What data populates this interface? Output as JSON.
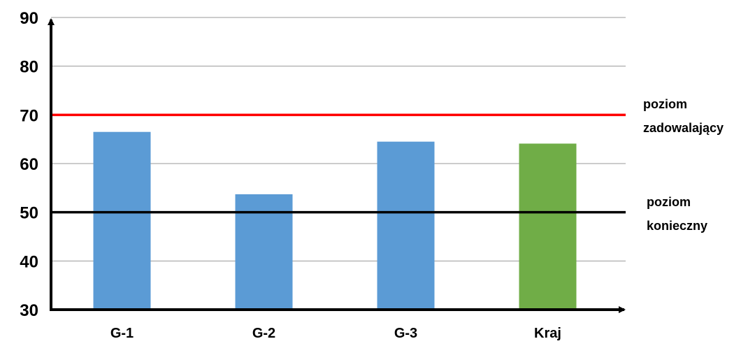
{
  "chart_data": {
    "type": "bar",
    "title": "",
    "xlabel": "",
    "ylabel": "",
    "ylim": [
      30,
      90
    ],
    "yticks": [
      30,
      40,
      50,
      60,
      70,
      80,
      90
    ],
    "grid": true,
    "categories": [
      "G-1",
      "G-2",
      "G-3",
      "Kraj"
    ],
    "values": [
      66.5,
      53.7,
      64.5,
      64.1
    ],
    "bar_colors": [
      "#5b9bd5",
      "#5b9bd5",
      "#5b9bd5",
      "#70ad47"
    ],
    "reference_lines": [
      {
        "value": 70,
        "color": "#ff0000",
        "label_line1": "poziom",
        "label_line2": "zadowalający"
      },
      {
        "value": 50,
        "color": "#000000",
        "label_line1": "poziom",
        "label_line2": "konieczny"
      }
    ]
  }
}
